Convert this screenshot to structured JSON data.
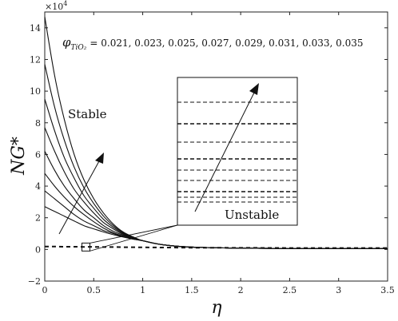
{
  "chart_data": {
    "type": "line",
    "xlabel": "η",
    "ylabel": "NG*",
    "y_multiplier": "×10",
    "y_multiplier_exp": "4",
    "xlim": [
      0,
      3.5
    ],
    "ylim": [
      -2,
      15
    ],
    "xticks": [
      0,
      0.5,
      1,
      1.5,
      2,
      2.5,
      3,
      3.5
    ],
    "xtick_labels": [
      "0",
      "0.5",
      "1",
      "1.5",
      "2",
      "2.5",
      "3",
      "3.5"
    ],
    "yticks": [
      -2,
      0,
      2,
      4,
      6,
      8,
      10,
      12,
      14
    ],
    "ytick_labels": [
      "−2",
      "0",
      "2",
      "4",
      "6",
      "8",
      "10",
      "12",
      "14"
    ],
    "grid": false,
    "series_params": "φ_{TiO2} = 0.021, 0.023, 0.025, 0.027, 0.029, 0.031, 0.033, 0.035",
    "param_symbol": "φ",
    "param_subscript": "TiO₂",
    "param_values": "= 0.021, 0.023, 0.025, 0.027, 0.029, 0.031, 0.033, 0.035",
    "x": [
      0,
      0.1,
      0.2,
      0.3,
      0.4,
      0.5,
      0.6,
      0.7,
      0.8,
      0.9,
      1.0,
      1.2,
      1.5,
      2.0,
      2.5,
      3.0,
      3.5
    ],
    "series": [
      {
        "values": [
          14.7,
          11.0,
          8.2,
          6.0,
          4.4,
          3.2,
          2.3,
          1.6,
          1.1,
          0.8,
          0.55,
          0.3,
          0.15,
          0.08,
          0.06,
          0.06,
          0.05
        ]
      },
      {
        "values": [
          11.7,
          9.0,
          6.9,
          5.2,
          3.9,
          2.9,
          2.1,
          1.5,
          1.05,
          0.75,
          0.55,
          0.3,
          0.15,
          0.08,
          0.06,
          0.06,
          0.05
        ]
      },
      {
        "values": [
          9.5,
          7.5,
          5.8,
          4.5,
          3.4,
          2.6,
          1.9,
          1.4,
          1.0,
          0.73,
          0.55,
          0.3,
          0.15,
          0.08,
          0.06,
          0.06,
          0.05
        ]
      },
      {
        "values": [
          7.7,
          6.2,
          4.9,
          3.8,
          3.0,
          2.3,
          1.7,
          1.3,
          0.95,
          0.72,
          0.55,
          0.3,
          0.15,
          0.08,
          0.06,
          0.06,
          0.05
        ]
      },
      {
        "values": [
          6.2,
          5.0,
          4.0,
          3.2,
          2.5,
          2.0,
          1.5,
          1.15,
          0.9,
          0.7,
          0.55,
          0.3,
          0.15,
          0.08,
          0.06,
          0.06,
          0.05
        ]
      },
      {
        "values": [
          4.8,
          4.0,
          3.3,
          2.7,
          2.2,
          1.75,
          1.35,
          1.05,
          0.85,
          0.68,
          0.55,
          0.3,
          0.15,
          0.08,
          0.06,
          0.06,
          0.05
        ]
      },
      {
        "values": [
          3.7,
          3.2,
          2.7,
          2.2,
          1.8,
          1.5,
          1.2,
          1.0,
          0.8,
          0.66,
          0.55,
          0.3,
          0.15,
          0.08,
          0.06,
          0.06,
          0.05
        ]
      },
      {
        "values": [
          2.7,
          2.4,
          2.1,
          1.8,
          1.5,
          1.3,
          1.1,
          0.93,
          0.78,
          0.65,
          0.55,
          0.3,
          0.15,
          0.08,
          0.06,
          0.06,
          0.05
        ]
      }
    ],
    "dashed_series": [
      {
        "values": [
          0.18,
          0.18,
          0.17,
          0.17,
          0.16,
          0.16,
          0.15,
          0.15,
          0.14,
          0.14,
          0.13,
          0.12,
          0.11,
          0.1,
          0.09,
          0.09,
          0.09
        ]
      }
    ],
    "annotations": {
      "stable": "Stable",
      "unstable": "Unstable"
    },
    "inset_dashed_lines": 9
  }
}
